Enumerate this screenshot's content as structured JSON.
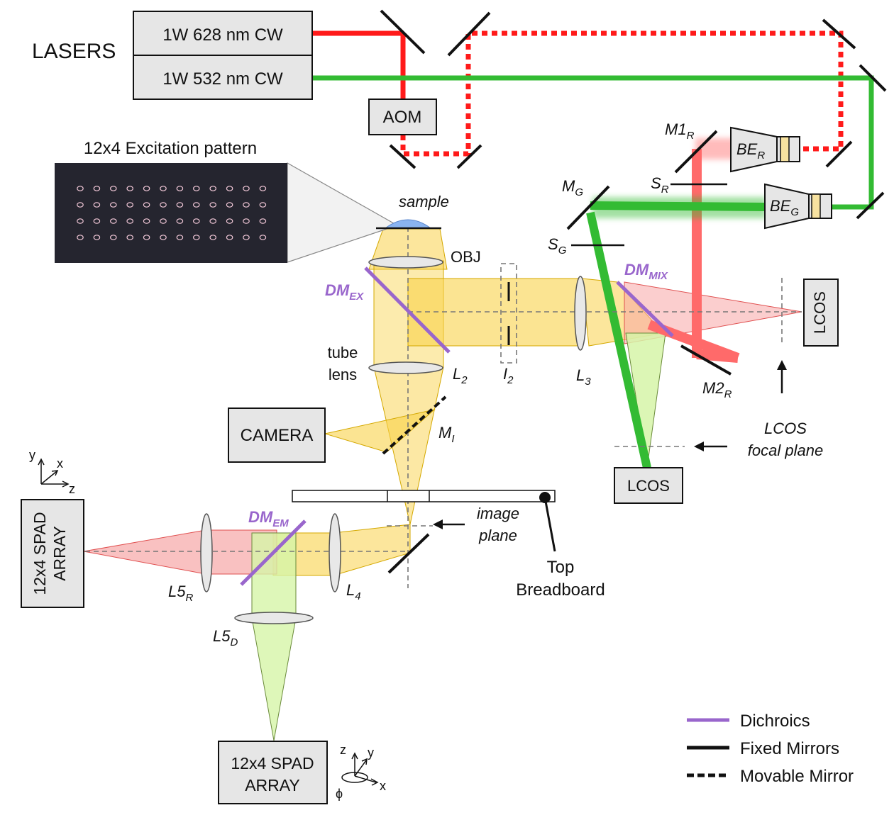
{
  "title_lasers": "LASERS",
  "laser_red": "1W 628 nm CW",
  "laser_green": "1W 532 nm CW",
  "aom": "AOM",
  "pattern_title": "12x4 Excitation pattern",
  "pattern_grid": {
    "rows": 4,
    "cols": 12
  },
  "sample": "sample",
  "objective": "OBJ",
  "dm_ex": {
    "main": "DM",
    "sub": "EX"
  },
  "dm_mix": {
    "main": "DM",
    "sub": "MIX"
  },
  "dm_em": {
    "main": "DM",
    "sub": "EM"
  },
  "tube_lens": [
    "tube",
    "lens"
  ],
  "l2": {
    "main": "L",
    "sub": "2"
  },
  "i2": {
    "main": "I",
    "sub": "2"
  },
  "l3": {
    "main": "L",
    "sub": "3"
  },
  "l4": {
    "main": "L",
    "sub": "4"
  },
  "l5r": {
    "main": "L5",
    "sub": "R"
  },
  "l5d": {
    "main": "L5",
    "sub": "D"
  },
  "mi": {
    "main": "M",
    "sub": "I"
  },
  "m1r": {
    "main": "M1",
    "sub": "R"
  },
  "m2r": {
    "main": "M2",
    "sub": "R"
  },
  "mg": {
    "main": "M",
    "sub": "G"
  },
  "sr": {
    "main": "S",
    "sub": "R"
  },
  "sg": {
    "main": "S",
    "sub": "G"
  },
  "ber": {
    "main": "BE",
    "sub": "R"
  },
  "beg": {
    "main": "BE",
    "sub": "G"
  },
  "camera": "CAMERA",
  "lcos_right": "LCOS",
  "lcos_bottom": "LCOS",
  "lcos_focal": [
    "LCOS",
    "focal plane"
  ],
  "image_plane": [
    "image",
    "plane"
  ],
  "top_breadboard": [
    "Top",
    "Breadboard"
  ],
  "spad_left": [
    "12x4 SPAD",
    "ARRAY"
  ],
  "spad_bottom": [
    "12x4 SPAD",
    "ARRAY"
  ],
  "axes_left": {
    "y": "y",
    "x": "x",
    "z": "z"
  },
  "axes_bottom": {
    "z": "z",
    "y": "y",
    "x": "x",
    "phi": "ϕ"
  },
  "legend": [
    {
      "label": "Dichroics",
      "color": "#9966cc",
      "style": "solid"
    },
    {
      "label": "Fixed Mirrors",
      "color": "#111111",
      "style": "solid"
    },
    {
      "label": "Movable Mirror",
      "color": "#111111",
      "style": "dashed"
    }
  ],
  "colors": {
    "red": "#ff1a1a",
    "green": "#33bb33",
    "yellow": "#f9d24a",
    "pink": "#f7a6a6",
    "lightgreen": "#d6f5a8",
    "purple": "#9966cc",
    "blue_sample": "#8ab4f0"
  }
}
